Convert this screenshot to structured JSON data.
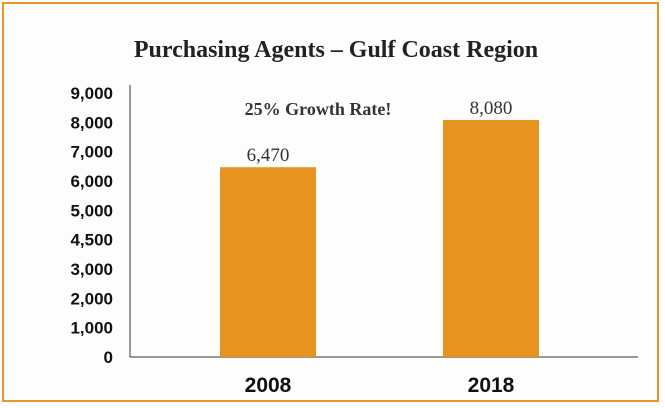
{
  "chart_data": {
    "type": "bar",
    "title": "Purchasing Agents – Gulf Coast Region",
    "annotation": "25% Growth Rate!",
    "categories": [
      "2008",
      "2018"
    ],
    "values": [
      6470,
      8080
    ],
    "data_labels": [
      "6,470",
      "8,080"
    ],
    "y_tick_labels": [
      "0",
      "1,000",
      "2,000",
      "3,000",
      "4,500",
      "5,000",
      "6,000",
      "7,000",
      "8,000",
      "9,000"
    ],
    "ylim": [
      0,
      9000
    ],
    "xlabel": "",
    "ylabel": "",
    "grid": false,
    "colors": {
      "bar": "#e8921f",
      "frame": "#e8942a",
      "axis": "#333333"
    }
  }
}
